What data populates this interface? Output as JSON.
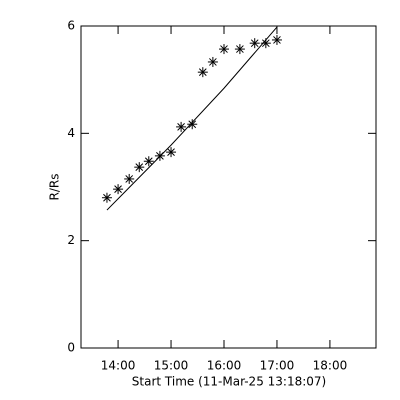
{
  "chart_data": {
    "type": "scatter",
    "xlabel": "Start Time (11-Mar-25 13:18:07)",
    "ylabel": "R/Rs",
    "xlim": [
      13.3,
      18.87
    ],
    "ylim": [
      0,
      6
    ],
    "xticks": [
      {
        "value": 14,
        "label": "14:00"
      },
      {
        "value": 15,
        "label": "15:00"
      },
      {
        "value": 16,
        "label": "16:00"
      },
      {
        "value": 17,
        "label": "17:00"
      },
      {
        "value": 18,
        "label": "18:00"
      }
    ],
    "yticks": [
      0,
      2,
      4,
      6
    ],
    "series": [
      {
        "style": "markers",
        "color": "#000000",
        "x": [
          13.79,
          14.0,
          14.21,
          14.4,
          14.58,
          14.79,
          15.0,
          15.19,
          15.4,
          15.6,
          15.79,
          16.0,
          16.3,
          16.58,
          16.79,
          17.0
        ],
        "values": [
          2.8,
          2.96,
          3.15,
          3.37,
          3.48,
          3.58,
          3.65,
          4.12,
          4.17,
          5.14,
          5.33,
          5.57,
          5.57,
          5.68,
          5.68,
          5.74
        ]
      },
      {
        "style": "line",
        "color": "#000000",
        "x": [
          13.79,
          15.0,
          16.0,
          17.0
        ],
        "values": [
          2.57,
          3.78,
          4.84,
          5.98
        ]
      }
    ]
  }
}
